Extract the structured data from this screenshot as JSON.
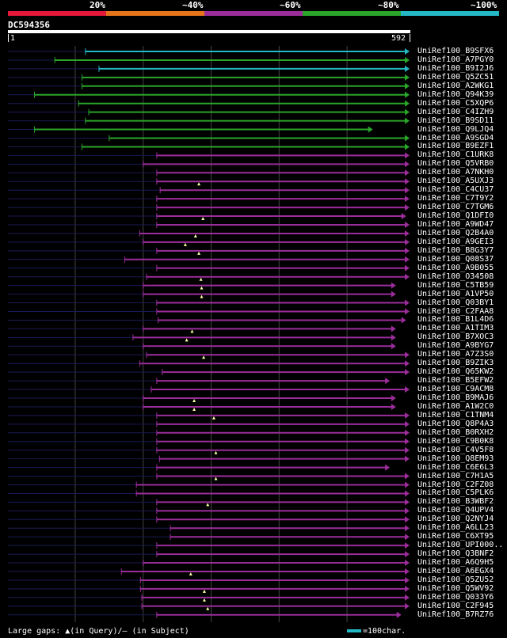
{
  "legend": {
    "labels": [
      "20%",
      "~40%",
      "~60%",
      "~80%",
      "~100%"
    ],
    "colors": [
      "#e5173b",
      "#e5751a",
      "#9b2d9b",
      "#2aa52a",
      "#24b7c4"
    ]
  },
  "query": {
    "id": "DC594356",
    "start": "1",
    "end": "592",
    "length": 592
  },
  "footer": {
    "gaps_text": "Large gaps: ▲(in Query)/– (in Subject)",
    "scale_text": "=100char."
  },
  "colors": {
    "line": "#24b7c4",
    "green": "#2aa52a",
    "purple": "#9b2d9b",
    "dash": "#1a1a55",
    "grid": "#444"
  },
  "hits": [
    {
      "id": "UniRef100_B9SFX6",
      "cat": "cyan",
      "start": 115,
      "end": 592,
      "tri": true
    },
    {
      "id": "UniRef100_A7PGY0",
      "cat": "green",
      "start": 70,
      "end": 592,
      "tri": true
    },
    {
      "id": "UniRef100_B9I2J6",
      "cat": "cyan",
      "start": 135,
      "end": 592,
      "tri": true
    },
    {
      "id": "UniRef100_Q5ZC51",
      "cat": "green",
      "start": 110,
      "end": 592,
      "tri": true
    },
    {
      "id": "UniRef100_A2WKG1",
      "cat": "green",
      "start": 110,
      "end": 592,
      "tri": true
    },
    {
      "id": "UniRef100_Q94K39",
      "cat": "green",
      "start": 40,
      "end": 592,
      "tri": true
    },
    {
      "id": "UniRef100_C5XQP6",
      "cat": "green",
      "start": 105,
      "end": 592,
      "tri": true
    },
    {
      "id": "UniRef100_C4IZH9",
      "cat": "green",
      "start": 120,
      "end": 592,
      "tri": true
    },
    {
      "id": "UniRef100_B9SD11",
      "cat": "green",
      "start": 115,
      "end": 592,
      "tri": true
    },
    {
      "id": "UniRef100_Q9LJQ4",
      "cat": "green",
      "start": 40,
      "end": 538,
      "tri": true
    },
    {
      "id": "UniRef100_A9SGD4",
      "cat": "green",
      "start": 150,
      "end": 592,
      "tri": true
    },
    {
      "id": "UniRef100_B9EZF1",
      "cat": "green",
      "start": 110,
      "end": 592,
      "tri": true
    },
    {
      "id": "UniRef100_C1URK8",
      "cat": "purple",
      "start": 220,
      "end": 592,
      "tri": true
    },
    {
      "id": "UniRef100_Q5VRB0",
      "cat": "purple",
      "start": 200,
      "end": 592,
      "tri": true
    },
    {
      "id": "UniRef100_A7NKH0",
      "cat": "purple",
      "start": 220,
      "end": 592,
      "tri": true
    },
    {
      "id": "UniRef100_A5UXJ3",
      "cat": "purple",
      "start": 220,
      "end": 592,
      "tri": true,
      "gap": 282
    },
    {
      "id": "UniRef100_C4CU37",
      "cat": "purple",
      "start": 225,
      "end": 592,
      "tri": true
    },
    {
      "id": "UniRef100_C7T9Y2",
      "cat": "purple",
      "start": 220,
      "end": 592,
      "tri": true
    },
    {
      "id": "UniRef100_C7TGM6",
      "cat": "purple",
      "start": 220,
      "end": 592,
      "tri": true
    },
    {
      "id": "UniRef100_Q1DFI0",
      "cat": "purple",
      "start": 220,
      "end": 587,
      "tri": true,
      "gap": 288
    },
    {
      "id": "UniRef100_A9WD47",
      "cat": "purple",
      "start": 220,
      "end": 592,
      "tri": true
    },
    {
      "id": "UniRef100_Q2B4A0",
      "cat": "purple",
      "start": 195,
      "end": 592,
      "tri": true,
      "gap": 277
    },
    {
      "id": "UniRef100_A9GEI3",
      "cat": "purple",
      "start": 200,
      "end": 592,
      "tri": true,
      "gap": 262
    },
    {
      "id": "UniRef100_B8G3Y7",
      "cat": "purple",
      "start": 220,
      "end": 592,
      "tri": true,
      "gap": 282
    },
    {
      "id": "UniRef100_Q08S37",
      "cat": "purple",
      "start": 173,
      "end": 592,
      "tri": true
    },
    {
      "id": "UniRef100_A9B055",
      "cat": "purple",
      "start": 220,
      "end": 592,
      "tri": true
    },
    {
      "id": "UniRef100_O34508",
      "cat": "purple",
      "start": 205,
      "end": 592,
      "tri": true,
      "gap": 285
    },
    {
      "id": "UniRef100_C5TB59",
      "cat": "purple",
      "start": 200,
      "end": 572,
      "tri": true,
      "gap": 286
    },
    {
      "id": "UniRef100_A1VP50",
      "cat": "purple",
      "start": 200,
      "end": 572,
      "tri": true,
      "gap": 286
    },
    {
      "id": "UniRef100_Q03BY1",
      "cat": "purple",
      "start": 220,
      "end": 592,
      "tri": true
    },
    {
      "id": "UniRef100_C2FAA8",
      "cat": "purple",
      "start": 220,
      "end": 592,
      "tri": true
    },
    {
      "id": "UniRef100_B1L4D6",
      "cat": "purple",
      "start": 222,
      "end": 587,
      "tri": true
    },
    {
      "id": "UniRef100_A1TIM3",
      "cat": "purple",
      "start": 200,
      "end": 572,
      "tri": true,
      "gap": 272
    },
    {
      "id": "UniRef100_B7XOC3",
      "cat": "purple",
      "start": 185,
      "end": 572,
      "tri": true,
      "gap": 264
    },
    {
      "id": "UniRef100_A9BYG7",
      "cat": "purple",
      "start": 200,
      "end": 572,
      "tri": true
    },
    {
      "id": "UniRef100_A7Z3S0",
      "cat": "purple",
      "start": 205,
      "end": 592,
      "tri": true,
      "gap": 289
    },
    {
      "id": "UniRef100_B9ZIK3",
      "cat": "purple",
      "start": 195,
      "end": 592,
      "tri": true
    },
    {
      "id": "UniRef100_Q65KW2",
      "cat": "purple",
      "start": 228,
      "end": 592,
      "tri": true
    },
    {
      "id": "UniRef100_B5EFW2",
      "cat": "purple",
      "start": 220,
      "end": 563,
      "tri": true
    },
    {
      "id": "UniRef100_C9ACM8",
      "cat": "purple",
      "start": 212,
      "end": 592,
      "tri": true
    },
    {
      "id": "UniRef100_B9MAJ6",
      "cat": "purple",
      "start": 200,
      "end": 572,
      "tri": true,
      "gap": 275
    },
    {
      "id": "UniRef100_A1W2C0",
      "cat": "purple",
      "start": 200,
      "end": 572,
      "tri": true,
      "gap": 275
    },
    {
      "id": "UniRef100_C1TNM4",
      "cat": "purple",
      "start": 220,
      "end": 592,
      "tri": true,
      "gap": 304
    },
    {
      "id": "UniRef100_Q8P4A3",
      "cat": "purple",
      "start": 220,
      "end": 592,
      "tri": true
    },
    {
      "id": "UniRef100_B0RXH2",
      "cat": "purple",
      "start": 220,
      "end": 592,
      "tri": true
    },
    {
      "id": "UniRef100_C9B0K8",
      "cat": "purple",
      "start": 220,
      "end": 592,
      "tri": true
    },
    {
      "id": "UniRef100_C4V5F8",
      "cat": "purple",
      "start": 220,
      "end": 592,
      "tri": true,
      "gap": 307
    },
    {
      "id": "UniRef100_Q8EM93",
      "cat": "purple",
      "start": 224,
      "end": 592,
      "tri": true
    },
    {
      "id": "UniRef100_C6E6L3",
      "cat": "purple",
      "start": 220,
      "end": 563,
      "tri": true
    },
    {
      "id": "UniRef100_C7H1A5",
      "cat": "purple",
      "start": 220,
      "end": 592,
      "tri": true,
      "gap": 307
    },
    {
      "id": "UniRef100_C2FZ08",
      "cat": "purple",
      "start": 190,
      "end": 592,
      "tri": true
    },
    {
      "id": "UniRef100_C5PLK6",
      "cat": "purple",
      "start": 190,
      "end": 592,
      "tri": true
    },
    {
      "id": "UniRef100_B3WBF2",
      "cat": "purple",
      "start": 220,
      "end": 592,
      "tri": true,
      "gap": 295
    },
    {
      "id": "UniRef100_Q4UPV4",
      "cat": "purple",
      "start": 220,
      "end": 592,
      "tri": true
    },
    {
      "id": "UniRef100_Q2NYJ4",
      "cat": "purple",
      "start": 220,
      "end": 592,
      "tri": true
    },
    {
      "id": "UniRef100_A6LL23",
      "cat": "purple",
      "start": 240,
      "end": 592,
      "tri": true
    },
    {
      "id": "UniRef100_C6XT95",
      "cat": "purple",
      "start": 240,
      "end": 592,
      "tri": true
    },
    {
      "id": "UniRef100_UPI000..",
      "cat": "purple",
      "start": 220,
      "end": 592,
      "tri": true
    },
    {
      "id": "UniRef100_Q3BNF2",
      "cat": "purple",
      "start": 220,
      "end": 592,
      "tri": true
    },
    {
      "id": "UniRef100_A6Q9H5",
      "cat": "purple",
      "start": 200,
      "end": 592,
      "tri": true
    },
    {
      "id": "UniRef100_A6EGX4",
      "cat": "purple",
      "start": 168,
      "end": 592,
      "tri": true,
      "gap": 270
    },
    {
      "id": "UniRef100_Q5ZU52",
      "cat": "purple",
      "start": 196,
      "end": 592,
      "tri": true
    },
    {
      "id": "UniRef100_Q5WV92",
      "cat": "purple",
      "start": 196,
      "end": 592,
      "tri": true,
      "gap": 290
    },
    {
      "id": "UniRef100_Q033Y6",
      "cat": "purple",
      "start": 198,
      "end": 592,
      "tri": true,
      "gap": 290
    },
    {
      "id": "UniRef100_C2F945",
      "cat": "purple",
      "start": 198,
      "end": 592,
      "tri": true,
      "gap": 295
    },
    {
      "id": "UniRef100_B7RZ76",
      "cat": "purple",
      "start": 220,
      "end": 580,
      "tri": true
    }
  ]
}
